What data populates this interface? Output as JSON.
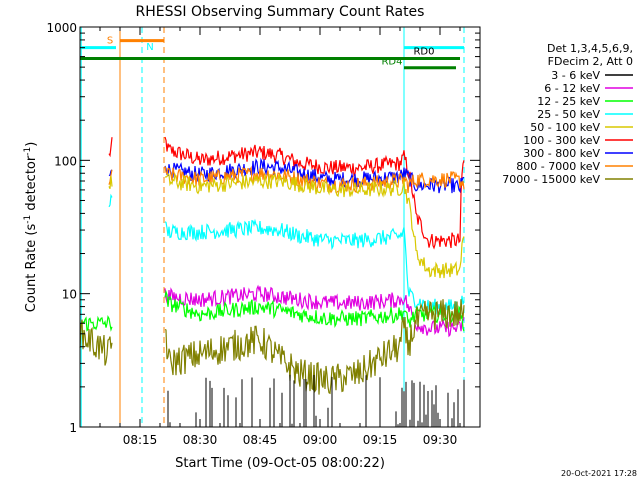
{
  "chart_data": {
    "type": "line",
    "title": "RHESSI Observing Summary Count Rates",
    "xlabel": "Start Time (09-Oct-05 08:00:22)",
    "ylabel_main": "Count Rate (s",
    "ylabel_sup1": "-1",
    "ylabel_mid": " detector",
    "ylabel_sup2": "-1",
    "ylabel_end": ")",
    "yscale": "log",
    "ylim": [
      1,
      1000
    ],
    "xlim_minutes": [
      0,
      100
    ],
    "x_ticks": [
      {
        "minute": 15,
        "label": "08:15"
      },
      {
        "minute": 30,
        "label": "08:30"
      },
      {
        "minute": 45,
        "label": "08:45"
      },
      {
        "minute": 60,
        "label": "09:00"
      },
      {
        "minute": 75,
        "label": "09:15"
      },
      {
        "minute": 90,
        "label": "09:30"
      }
    ],
    "y_ticks": [
      {
        "value": 1,
        "label": "1"
      },
      {
        "value": 10,
        "label": "10"
      },
      {
        "value": 100,
        "label": "100"
      },
      {
        "value": 1000,
        "label": "1000"
      }
    ],
    "legend_header": [
      "Det 1,3,4,5,6,9,",
      "FDecim 2, Att 0"
    ],
    "series": [
      {
        "name": "3 - 6 keV",
        "color": "#000000"
      },
      {
        "name": "6 - 12 keV",
        "color": "#e000e0"
      },
      {
        "name": "12 - 25 keV",
        "color": "#00ff00"
      },
      {
        "name": "25 - 50 keV",
        "color": "#00ffff"
      },
      {
        "name": "50 - 100 keV",
        "color": "#d8c800"
      },
      {
        "name": "100 - 300 keV",
        "color": "#ff0000"
      },
      {
        "name": "300 - 800 keV",
        "color": "#0000ff"
      },
      {
        "name": "800 - 7000 keV",
        "color": "#ff8000"
      },
      {
        "name": "7000 - 15000 keV",
        "color": "#808000"
      }
    ],
    "flag_labels": {
      "s": "S",
      "n": "N",
      "rd0": "RD0",
      "rd4": "RD4"
    },
    "footer_timestamp": "20-Oct-2021 17:28"
  }
}
